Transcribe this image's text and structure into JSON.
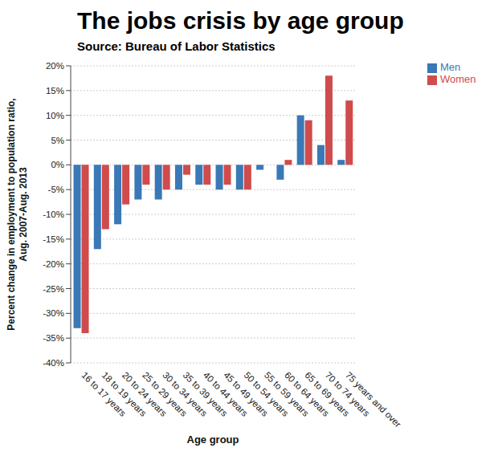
{
  "chart_data": {
    "type": "bar",
    "title": "The jobs crisis by age group",
    "subtitle": "Source: Bureau of Labor Statistics",
    "x_label": "Age group",
    "y_label": [
      "Percent change in employment to population ratio,",
      "Aug. 2007-Aug. 2013"
    ],
    "categories": [
      "16 to 17 years",
      "18 to 19 years",
      "20 to 24 years",
      "25 to 29 years",
      "30 to 34 years",
      "35 to 39 years",
      "40 to 44 years",
      "45 to 49 years",
      "50 to 54 years",
      "55 to 59 years",
      "60 to 64 years",
      "65 to 69 years",
      "70 to 74 years",
      "75 years and over"
    ],
    "series": [
      {
        "name": "Men",
        "color": "#3a78b6",
        "values": [
          -33,
          -17,
          -12,
          -7,
          -7,
          -5,
          -4,
          -5,
          -5,
          -1,
          -3,
          10,
          4,
          1
        ]
      },
      {
        "name": "Women",
        "color": "#d04b4b",
        "values": [
          -34,
          -13,
          -8,
          -4,
          -5,
          -2,
          -4,
          -4,
          -5,
          0,
          1,
          9,
          18,
          13
        ]
      }
    ],
    "ylim": [
      -40,
      20
    ],
    "yticks": [
      {
        "value": -40,
        "label": "-40%"
      },
      {
        "value": -35,
        "label": "-35%"
      },
      {
        "value": -30,
        "label": "-30%"
      },
      {
        "value": -25,
        "label": "-25%"
      },
      {
        "value": -20,
        "label": "-20%"
      },
      {
        "value": -15,
        "label": "-15%"
      },
      {
        "value": -10,
        "label": "-10%"
      },
      {
        "value": -5,
        "label": "-5%"
      },
      {
        "value": 0,
        "label": "0%"
      },
      {
        "value": 5,
        "label": "5%"
      },
      {
        "value": 10,
        "label": "10%"
      },
      {
        "value": 15,
        "label": "15%"
      },
      {
        "value": 20,
        "label": "20%"
      }
    ],
    "grid": true,
    "legend": "top-right"
  }
}
